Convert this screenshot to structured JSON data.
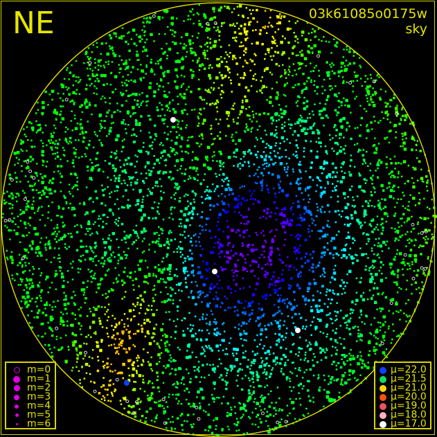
{
  "header": {
    "direction": "NE",
    "image_id": "03k61085o0175w",
    "map_type": "sky"
  },
  "chart_data": {
    "type": "scatter",
    "title": "",
    "horizon_circle_color": "#d8d800",
    "magnitude_legend": [
      {
        "label": "m=0",
        "style": "ring"
      },
      {
        "label": "m=1",
        "size": 5
      },
      {
        "label": "m=2",
        "size": 4.5
      },
      {
        "label": "m=3",
        "size": 4
      },
      {
        "label": "m=4",
        "size": 3
      },
      {
        "label": "m=5",
        "size": 2.5
      },
      {
        "label": "m=6",
        "size": 1.5
      }
    ],
    "brightness_legend": [
      {
        "label": "μ=22.0",
        "value": 22.0,
        "color": "#1040ff"
      },
      {
        "label": "μ=21.5",
        "value": 21.5,
        "color": "#10e060"
      },
      {
        "label": "μ=21.0",
        "value": 21.0,
        "color": "#ffd800"
      },
      {
        "label": "μ=20.0",
        "value": 20.0,
        "color": "#ff5010"
      },
      {
        "label": "μ=19.0",
        "value": 19.0,
        "color": "#f05060"
      },
      {
        "label": "μ=18.0",
        "value": 18.0,
        "color": "#ffb0c0"
      },
      {
        "label": "μ=17.0",
        "value": 17.0,
        "color": "#ffffff"
      }
    ]
  }
}
